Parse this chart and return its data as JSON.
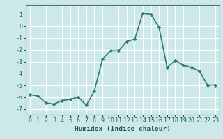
{
  "x": [
    0,
    1,
    2,
    3,
    4,
    5,
    6,
    7,
    8,
    9,
    10,
    11,
    12,
    13,
    14,
    15,
    16,
    17,
    18,
    19,
    20,
    21,
    22,
    23
  ],
  "y": [
    -5.8,
    -5.9,
    -6.5,
    -6.6,
    -6.3,
    -6.2,
    -6.0,
    -6.7,
    -5.5,
    -2.8,
    -2.1,
    -2.1,
    -1.3,
    -1.1,
    1.1,
    1.0,
    -0.1,
    -3.5,
    -2.9,
    -3.3,
    -3.5,
    -3.8,
    -5.0,
    -5.0
  ],
  "line_color": "#2d7a6e",
  "marker": "D",
  "markersize": 2.2,
  "xlabel": "Humidex (Indice chaleur)",
  "bg_color": "#cce8e8",
  "grid_color": "#ffffff",
  "xlim": [
    -0.5,
    23.5
  ],
  "ylim": [
    -7.5,
    1.8
  ],
  "yticks": [
    1,
    0,
    -1,
    -2,
    -3,
    -4,
    -5,
    -6,
    -7
  ],
  "xticks": [
    0,
    1,
    2,
    3,
    4,
    5,
    6,
    7,
    8,
    9,
    10,
    11,
    12,
    13,
    14,
    15,
    16,
    17,
    18,
    19,
    20,
    21,
    22,
    23
  ],
  "xtick_labels": [
    "0",
    "1",
    "2",
    "3",
    "4",
    "5",
    "6",
    "7",
    "8",
    "9",
    "10",
    "11",
    "12",
    "13",
    "14",
    "15",
    "16",
    "17",
    "18",
    "19",
    "20",
    "21",
    "22",
    "23"
  ],
  "linewidth": 1.2,
  "tick_fontsize": 6.0,
  "xlabel_fontsize": 6.8
}
